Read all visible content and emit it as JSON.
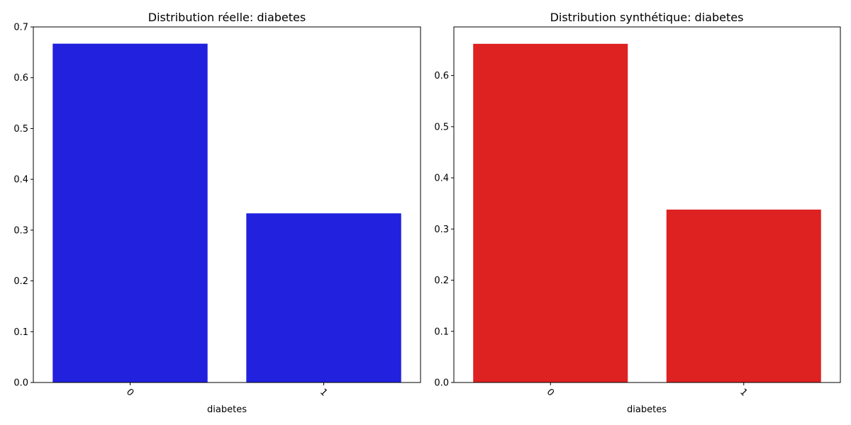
{
  "chart_data": [
    {
      "type": "bar",
      "title": "Distribution réelle: diabetes",
      "xlabel": "diabetes",
      "ylabel": "",
      "categories": [
        "0",
        "1"
      ],
      "values": [
        0.667,
        0.333
      ],
      "ylim": [
        0,
        0.7
      ],
      "yticks": [
        0.0,
        0.1,
        0.2,
        0.3,
        0.4,
        0.5,
        0.6,
        0.7
      ],
      "ytick_labels": [
        "0.0",
        "0.1",
        "0.2",
        "0.3",
        "0.4",
        "0.5",
        "0.6",
        "0.7"
      ],
      "color": "#2121de",
      "grid": false,
      "xtick_rotation_deg": 45
    },
    {
      "type": "bar",
      "title": "Distribution synthétique: diabetes",
      "xlabel": "diabetes",
      "ylabel": "",
      "categories": [
        "0",
        "1"
      ],
      "values": [
        0.662,
        0.338
      ],
      "ylim": [
        0,
        0.695
      ],
      "yticks": [
        0.0,
        0.1,
        0.2,
        0.3,
        0.4,
        0.5,
        0.6
      ],
      "ytick_labels": [
        "0.0",
        "0.1",
        "0.2",
        "0.3",
        "0.4",
        "0.5",
        "0.6"
      ],
      "color": "#de2121",
      "grid": false,
      "xtick_rotation_deg": 45
    }
  ]
}
